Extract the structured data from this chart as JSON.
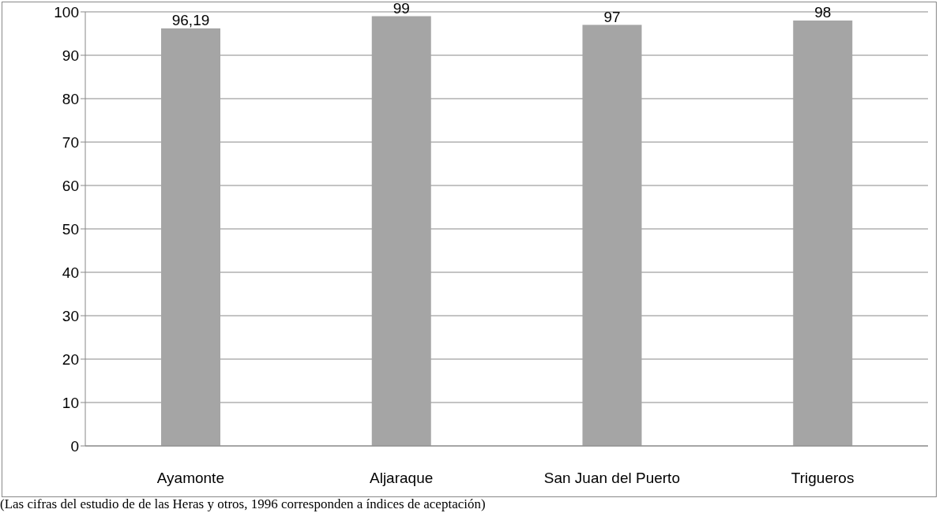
{
  "chart_data": {
    "type": "bar",
    "categories": [
      "Ayamonte",
      "Aljaraque",
      "San Juan del Puerto",
      "Trigueros"
    ],
    "values": [
      96.19,
      99,
      97,
      98
    ],
    "value_labels": [
      "96,19",
      "99",
      "97",
      "98"
    ],
    "color": "#a5a5a5",
    "ylim": [
      0,
      100
    ],
    "yticks": [
      0,
      10,
      20,
      30,
      40,
      50,
      60,
      70,
      80,
      90,
      100
    ],
    "grid": "y",
    "annotations": [
      "(Las cifras del estudio de de las Heras y otros, 1996 corresponden a índices de aceptación)"
    ]
  }
}
